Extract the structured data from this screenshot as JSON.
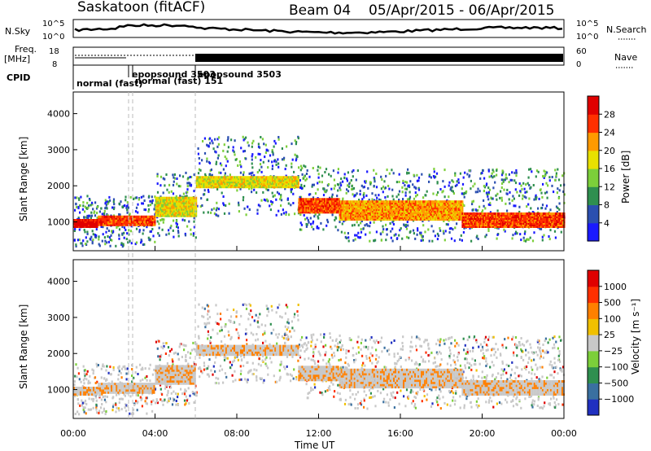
{
  "header": {
    "station": "Saskatoon (fitACF)",
    "beam": "Beam 04",
    "dates": "05/Apr/2015 - 06/Apr/2015"
  },
  "top_panels": {
    "nsky_label": "N.Sky",
    "nsky_ticks": [
      "10^5",
      "10^0"
    ],
    "nsearch_label": "N.Search",
    "nsearch_ticks": [
      "10^5",
      "10^0"
    ],
    "freq_label_1": "Freq.",
    "freq_label_2": "[MHz]",
    "freq_ticks": [
      "18",
      "8"
    ],
    "nave_label": "Nave",
    "nave_ticks": [
      "60",
      "0"
    ],
    "cpid_label": "CPID",
    "cpid_modes": [
      "normal (fast)",
      "epopsound 3503",
      "normal (fast) 151",
      "epopsound 3503"
    ]
  },
  "chart_data": [
    {
      "type": "heatmap",
      "name": "power",
      "ylabel": "Slant Range [km]",
      "yticks": [
        "1000",
        "2000",
        "3000",
        "4000"
      ],
      "ylim": [
        200,
        4600
      ],
      "xlim_hours": [
        0,
        24
      ],
      "colorbar_label": "Power [dB]",
      "colorbar_ticks": [
        "4",
        "8",
        "12",
        "16",
        "20",
        "24",
        "28"
      ],
      "colors": [
        "#1a1aff",
        "#2b4fb0",
        "#2f8f4f",
        "#7ccf3a",
        "#e8e000",
        "#ff9a00",
        "#ff3000",
        "#e00000"
      ],
      "bands": [
        {
          "t": [
            0,
            1.2
          ],
          "r": [
            900,
            1100
          ],
          "level": 7
        },
        {
          "t": [
            1.2,
            4.0
          ],
          "r": [
            950,
            1200
          ],
          "level": 6
        },
        {
          "t": [
            4.0,
            6.0
          ],
          "r": [
            1200,
            1700
          ],
          "level": 4
        },
        {
          "t": [
            6.0,
            11.0
          ],
          "r": [
            2000,
            2300
          ],
          "level": 4
        },
        {
          "t": [
            11.0,
            13.0
          ],
          "r": [
            1300,
            1700
          ],
          "level": 6
        },
        {
          "t": [
            13.0,
            19.0
          ],
          "r": [
            1100,
            1600
          ],
          "level": 5
        },
        {
          "t": [
            19.0,
            24.0
          ],
          "r": [
            900,
            1300
          ],
          "level": 6
        }
      ]
    },
    {
      "type": "heatmap",
      "name": "velocity",
      "ylabel": "Slant Range [km]",
      "yticks": [
        "1000",
        "2000",
        "3000",
        "4000"
      ],
      "ylim": [
        200,
        4600
      ],
      "xlim_hours": [
        0,
        24
      ],
      "xticks": [
        "00:00",
        "04:00",
        "08:00",
        "12:00",
        "16:00",
        "20:00",
        "00:00"
      ],
      "xlabel": "Time UT",
      "colorbar_label": "Velocity [m s⁻¹]",
      "colorbar_ticks": [
        "1000",
        "500",
        "100",
        "25",
        "−25",
        "−100",
        "−500",
        "−1000"
      ],
      "colors": [
        "#2030c0",
        "#3a70a0",
        "#2f8f4f",
        "#7ccf3a",
        "#c8c8c8",
        "#f0c000",
        "#ff8000",
        "#ff3000",
        "#e00000"
      ]
    }
  ]
}
